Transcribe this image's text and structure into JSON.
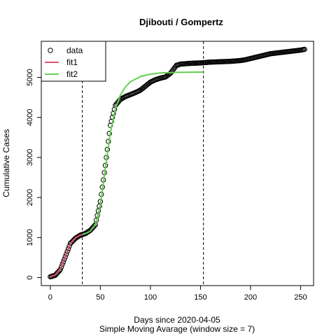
{
  "chart_data": {
    "type": "scatter",
    "title": "Djibouti / Gompertz",
    "xlabel": "Days since 2020-04-05",
    "xlabel2": "Simple Moving Avarage (window size = 7)",
    "ylabel": "Cumulative Cases",
    "xlim": [
      -9,
      263
    ],
    "ylim": [
      -200,
      5900
    ],
    "xticks": [
      0,
      50,
      100,
      150,
      200,
      250
    ],
    "yticks": [
      0,
      1000,
      2000,
      3000,
      4000,
      5000
    ],
    "vlines": [
      32,
      153
    ],
    "legend_position": "top-left",
    "colors": {
      "data": "#000000",
      "fit1": "#df536b",
      "fit2": "#61d04f",
      "vline": "#000000"
    },
    "legend": [
      "data",
      "fit1",
      "fit2"
    ],
    "series": [
      {
        "name": "data",
        "mark": "open-circle",
        "x": [
          0,
          5,
          10,
          15,
          20,
          25,
          30,
          35,
          40,
          45,
          50,
          55,
          60,
          65,
          70,
          75,
          80,
          85,
          90,
          95,
          100,
          105,
          110,
          115,
          120,
          123,
          126,
          130,
          140,
          150,
          160,
          170,
          180,
          190,
          195,
          200,
          210,
          220,
          230,
          240,
          250,
          254
        ],
        "y": [
          20,
          60,
          200,
          520,
          850,
          980,
          1060,
          1100,
          1180,
          1320,
          1900,
          2800,
          3800,
          4300,
          4450,
          4520,
          4570,
          4620,
          4680,
          4780,
          4880,
          4940,
          4980,
          5010,
          5100,
          5200,
          5300,
          5330,
          5350,
          5360,
          5380,
          5390,
          5400,
          5420,
          5440,
          5470,
          5530,
          5590,
          5620,
          5650,
          5680,
          5700
        ]
      },
      {
        "name": "fit1",
        "mark": "line",
        "x": [
          0,
          5,
          10,
          15,
          20,
          25,
          30,
          32
        ],
        "y": [
          20,
          70,
          220,
          530,
          850,
          990,
          1060,
          1080
        ]
      },
      {
        "name": "fit2",
        "mark": "line",
        "x": [
          32,
          35,
          40,
          45,
          50,
          55,
          60,
          65,
          70,
          75,
          80,
          90,
          100,
          110,
          120,
          130,
          140,
          153
        ],
        "y": [
          1080,
          1100,
          1160,
          1320,
          1820,
          2720,
          3620,
          4220,
          4560,
          4760,
          4890,
          5020,
          5080,
          5110,
          5120,
          5125,
          5128,
          5130
        ]
      }
    ]
  }
}
